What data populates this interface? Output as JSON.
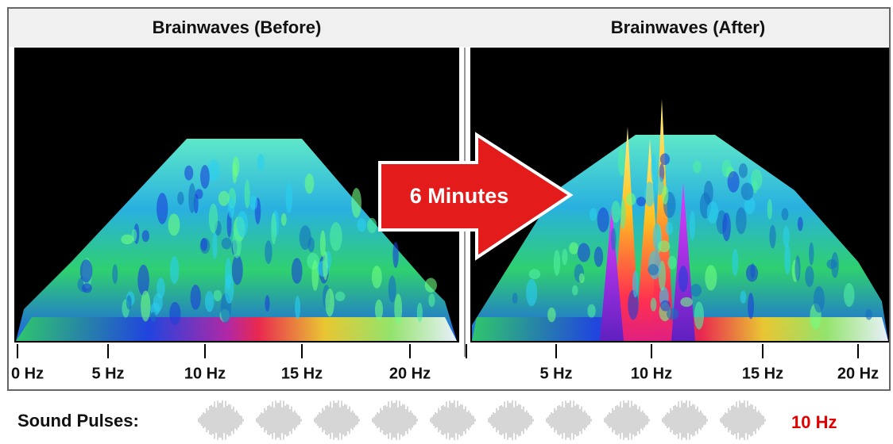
{
  "panels": [
    {
      "title": "Brainwaves (Before)",
      "ticks": [
        "0 Hz",
        "5 Hz",
        "10 Hz",
        "15 Hz",
        "20 Hz"
      ]
    },
    {
      "title": "Brainwaves (After)",
      "ticks": [
        "5 Hz",
        "10 Hz",
        "15 Hz",
        "20 Hz"
      ]
    }
  ],
  "arrow": {
    "label": "6 Minutes"
  },
  "footer": {
    "label": "Sound Pulses:",
    "frequency": "10 Hz"
  }
}
